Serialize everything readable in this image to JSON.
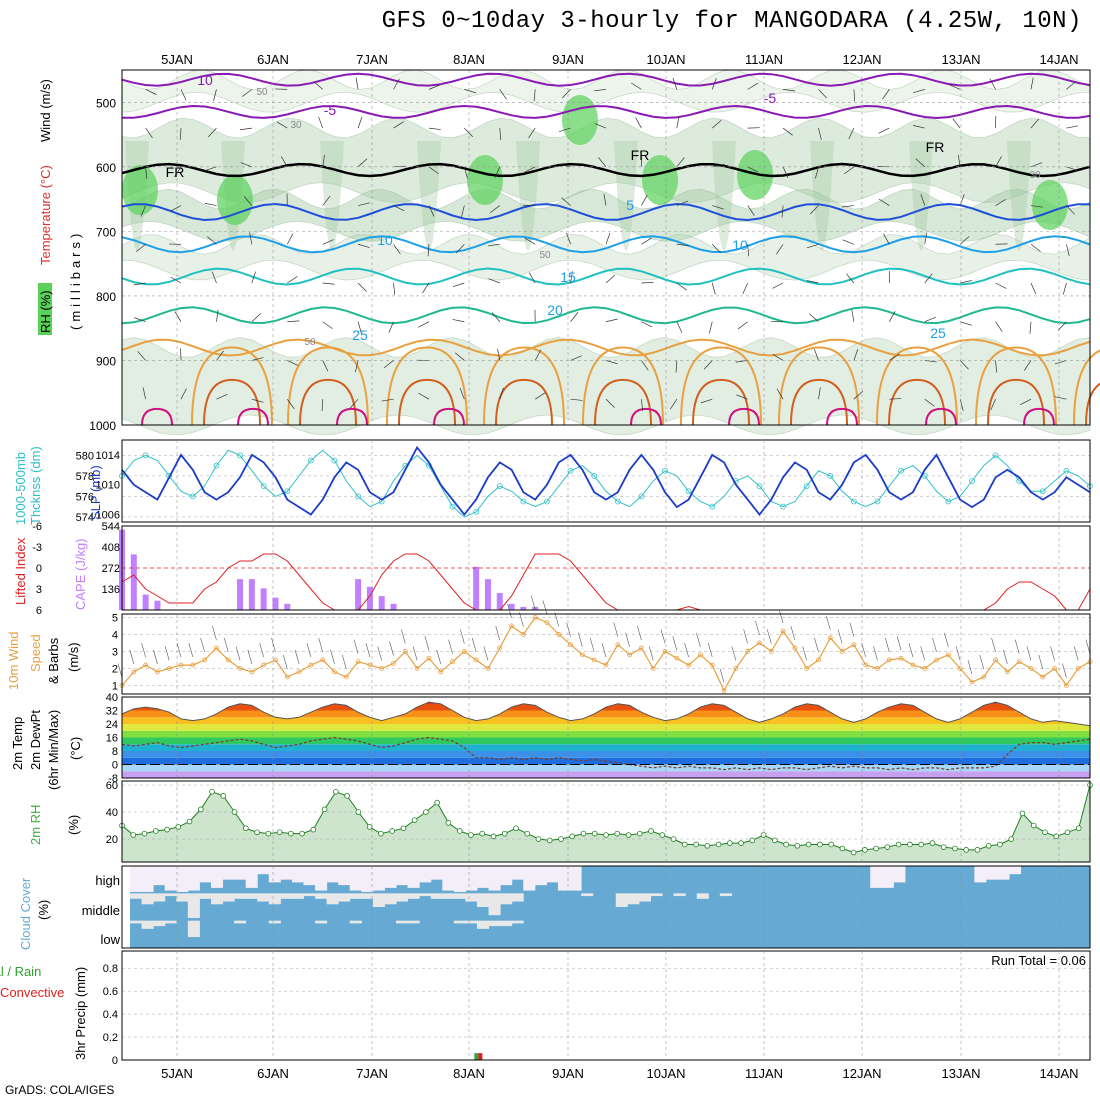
{
  "title": "GFS 0~10day 3-hourly for MANGODARA (4.25W, 10N)",
  "credit": "GrADS: COLA/IGES",
  "run_total": "Run Total = 0.06",
  "date_labels": [
    "5JAN",
    "6JAN",
    "7JAN",
    "8JAN",
    "9JAN",
    "10JAN",
    "11JAN",
    "12JAN",
    "13JAN",
    "14JAN"
  ],
  "panel_labels": {
    "upper": {
      "rh": "RH (%)",
      "temperature": "Temperature (°C)",
      "wind": "Wind (m/s)",
      "mb": "(millibars)"
    },
    "thickness": {
      "a": "1000-500mb",
      "b": "Thcknss (dm)",
      "c": "SLP (mb)"
    },
    "cape": {
      "a": "Lifted Index",
      "b": "CAPE (J/kg)"
    },
    "wind10": {
      "a": "10m Wind",
      "b": "Speed",
      "c": "& Barbs",
      "d": "(m/s)"
    },
    "temp2m": {
      "a": "2m Temp",
      "b": "2m DewPt",
      "c": "(6hr Min/Max)",
      "d": "(°C)"
    },
    "rh2m": {
      "a": "2m RH",
      "b": "(%)"
    },
    "cloud": {
      "a": "Cloud Cover",
      "b": "(%)",
      "high": "high",
      "middle": "middle",
      "low": "low"
    },
    "precip": {
      "a": "tal / Rain",
      "b": "Convective",
      "c": "3hr Precip (mm)"
    }
  },
  "contour_labels": [
    "10",
    "-5",
    "50",
    "30",
    "FR",
    "FR",
    "FR",
    "-5",
    "5",
    "10",
    "10",
    "15",
    "20",
    "25",
    "25",
    "50",
    "50",
    "30"
  ],
  "colors": {
    "temp_cold": "#8a19b4",
    "temp_zero": "#000000",
    "temp_mid": "#1e4fd8",
    "rh_green": "#5ad25a",
    "slp": "#1c3cc8",
    "thickness": "#30c0c8",
    "cape": "#c080ff",
    "li": "#e02020",
    "wind": "#e8a040",
    "cloud": "#66aad4",
    "rh2m": "#40b040"
  },
  "chart_data": [
    {
      "type": "area",
      "title": "",
      "ylabel": "Wind (m/s)",
      "y_ticks": [
        500,
        600,
        700,
        800,
        900,
        1000
      ],
      "ylim": [
        1000,
        450
      ],
      "isotherms": [
        {
          "label": "10",
          "level_mb": 465
        },
        {
          "label": "-5",
          "level_mb": 515
        },
        {
          "label": "FR",
          "level_mb": 605
        },
        {
          "label": "5",
          "level_mb": 670
        },
        {
          "label": "10",
          "level_mb": 720
        },
        {
          "label": "15",
          "level_mb": 770
        },
        {
          "label": "20",
          "level_mb": 830
        },
        {
          "label": "25",
          "level_mb": 880
        }
      ]
    },
    {
      "type": "line",
      "y_ticks_left": [
        574,
        576,
        578,
        580
      ],
      "y_ticks_right": [
        1006,
        1010,
        1014
      ],
      "ylim_left": [
        573.5,
        581.5
      ],
      "ylim_right": [
        1005,
        1016
      ],
      "series": [
        {
          "name": "Thcknss (dm)",
          "axis": "left",
          "values": [
            578,
            579.5,
            580,
            579.5,
            578,
            576.5,
            576,
            577,
            579,
            580.5,
            580,
            578.5,
            577,
            576,
            576.5,
            578,
            579.5,
            580.5,
            579.5,
            577.5,
            576,
            575,
            575.5,
            577.5,
            579,
            580,
            579,
            577,
            575,
            574,
            574.5,
            576,
            577,
            576.5,
            575.5,
            575,
            575.5,
            577,
            578.5,
            579,
            578,
            576.5,
            575.5,
            575,
            576,
            577.5,
            578.5,
            578,
            576.5,
            575.5,
            575,
            576,
            577.5,
            578,
            577,
            575.5,
            575,
            575.5,
            577,
            578.5,
            578,
            576.5,
            575.5,
            575,
            575.5,
            577,
            578.5,
            579,
            578,
            576.5,
            575.5,
            576,
            577.5,
            579,
            580,
            579,
            577.5,
            576.5,
            576.5,
            577.5,
            578.5,
            578,
            577
          ]
        },
        {
          "name": "SLP (mb)",
          "axis": "right",
          "values": [
            1012,
            1010,
            1009,
            1008,
            1011,
            1014,
            1012,
            1009,
            1008,
            1009,
            1011,
            1014,
            1013,
            1011,
            1008,
            1007,
            1006,
            1008,
            1011,
            1013,
            1012,
            1009,
            1008,
            1009,
            1012,
            1015,
            1013,
            1010,
            1008,
            1006,
            1008,
            1011,
            1013,
            1012,
            1009,
            1008,
            1010,
            1013,
            1014,
            1012,
            1009,
            1008,
            1009,
            1012,
            1014,
            1012,
            1009,
            1007,
            1008,
            1011,
            1014,
            1013,
            1010,
            1008,
            1006,
            1008,
            1011,
            1013,
            1012,
            1009,
            1008,
            1010,
            1013,
            1014,
            1012,
            1009,
            1008,
            1009,
            1012,
            1014,
            1011,
            1008,
            1007,
            1008,
            1011,
            1012,
            1011,
            1009,
            1008,
            1009,
            1011,
            1010,
            1009
          ]
        }
      ]
    },
    {
      "type": "bar",
      "y_ticks_left": [
        "6",
        "3",
        "0",
        "-3",
        "-6"
      ],
      "y_ticks_right": [
        136,
        272,
        408,
        544
      ],
      "cape_values": [
        520,
        360,
        100,
        60,
        0,
        0,
        0,
        0,
        0,
        0,
        200,
        200,
        140,
        80,
        40,
        0,
        0,
        0,
        0,
        0,
        200,
        150,
        90,
        40,
        0,
        0,
        0,
        0,
        0,
        0,
        280,
        200,
        110,
        40,
        20,
        20,
        0,
        0,
        0,
        0,
        0,
        0,
        0,
        0,
        0,
        0,
        0,
        0,
        0,
        0,
        0,
        0,
        0,
        0,
        0,
        0,
        0,
        0,
        0,
        0,
        0,
        0,
        0,
        0,
        0,
        0,
        0,
        0,
        0,
        0,
        0,
        0,
        0,
        0,
        0,
        0,
        0,
        0,
        0,
        0,
        0,
        0,
        0
      ],
      "li_values": [
        2,
        1,
        3,
        4,
        5,
        5,
        5,
        3,
        2,
        0,
        -1,
        -1,
        -2,
        -2,
        -1,
        1,
        3,
        5,
        6,
        6,
        6,
        4,
        1,
        -1,
        -2,
        -2,
        -1,
        1,
        3,
        5,
        6,
        6,
        6,
        4,
        1,
        -2,
        -2,
        -2,
        -1,
        1,
        3,
        5,
        6,
        6,
        6,
        6,
        6,
        6,
        5.5,
        6,
        6,
        6,
        6,
        6,
        6,
        6,
        6,
        6,
        6,
        6,
        6,
        6,
        6,
        6,
        6,
        6,
        6,
        6,
        6,
        6,
        6,
        6,
        6,
        6,
        5,
        3,
        2,
        2,
        3,
        4,
        6,
        6,
        3
      ]
    },
    {
      "type": "line",
      "ylabel": "(m/s)",
      "y_ticks": [
        1,
        2,
        3,
        4,
        5
      ],
      "ylim": [
        0.5,
        5.2
      ],
      "values": [
        1,
        1.8,
        2.2,
        1.8,
        2,
        2.2,
        2.2,
        2.5,
        3.2,
        2.5,
        2,
        1.8,
        2.2,
        2.5,
        1.5,
        1.8,
        2.2,
        2.5,
        1.8,
        1.5,
        2.4,
        2.2,
        2,
        2.3,
        3,
        2,
        2.6,
        1.8,
        2.4,
        3,
        2.5,
        2,
        3.2,
        4.5,
        4,
        5,
        4.7,
        4,
        3.4,
        2.8,
        2.5,
        2.2,
        3.4,
        2.8,
        3.2,
        2,
        3,
        2.6,
        2.2,
        2.8,
        2.2,
        0.7,
        2,
        3,
        3.5,
        3,
        4.2,
        3.2,
        2,
        2.5,
        3.8,
        3,
        3.4,
        2.2,
        2,
        2.5,
        2.6,
        2.2,
        2,
        2.5,
        2.8,
        2,
        1.2,
        1.5,
        2.5,
        1.8,
        2.4,
        2,
        1.5,
        2,
        1,
        2,
        2.4
      ]
    },
    {
      "type": "area",
      "ylabel": "(°C)",
      "y_ticks": [
        40,
        32,
        24,
        16,
        8,
        0,
        -8
      ],
      "ylim": [
        -8,
        40
      ],
      "temperature": [
        30,
        33,
        34,
        33,
        31,
        27,
        26,
        27,
        30,
        34,
        36,
        35,
        31,
        28,
        27,
        28,
        31,
        34,
        36,
        35,
        31,
        28,
        26,
        28,
        30,
        34,
        37,
        36,
        32,
        28,
        26,
        27,
        30,
        34,
        36,
        35,
        31,
        28,
        26,
        27,
        30,
        34,
        36,
        35,
        31,
        28,
        26,
        27,
        30,
        34,
        36,
        35,
        31,
        27,
        25,
        27,
        30,
        34,
        36,
        35,
        31,
        27,
        25,
        27,
        31,
        34,
        36,
        35,
        31,
        27,
        25,
        27,
        31,
        35,
        37,
        35,
        31,
        27,
        25,
        26,
        25,
        24,
        23
      ],
      "dewpoint": [
        12,
        11,
        12,
        13,
        11,
        10,
        11,
        12,
        13,
        14,
        15,
        14,
        12,
        10,
        11,
        12,
        14,
        15,
        16,
        15,
        14,
        12,
        10,
        11,
        13,
        15,
        16,
        15,
        14,
        10,
        4,
        4,
        3,
        4,
        3,
        4,
        3,
        4,
        3,
        2,
        3,
        2,
        1,
        0,
        -1,
        -2,
        -1,
        -2,
        -1,
        -2,
        -2,
        -3,
        -2,
        -3,
        -2,
        -3,
        -2,
        -2,
        -3,
        -2,
        -1,
        -2,
        -1,
        -2,
        -2,
        -3,
        -2,
        -3,
        -2,
        -2,
        -3,
        -2,
        -2,
        -2,
        -1,
        6,
        12,
        13,
        13,
        12,
        13,
        14,
        15
      ]
    },
    {
      "type": "area",
      "ylabel": "(%)",
      "y_ticks": [
        20,
        40,
        60
      ],
      "ylim": [
        3,
        63
      ],
      "values": [
        30,
        23,
        24,
        26,
        27,
        29,
        33,
        42,
        55,
        52,
        40,
        28,
        25,
        24,
        25,
        24,
        24,
        27,
        42,
        55,
        52,
        40,
        29,
        24,
        26,
        28,
        34,
        40,
        47,
        32,
        26,
        23,
        24,
        22,
        24,
        28,
        24,
        20,
        19,
        20,
        22,
        24,
        24,
        23,
        24,
        23,
        24,
        26,
        23,
        20,
        16,
        16,
        15,
        16,
        17,
        17,
        19,
        23,
        19,
        16,
        15,
        16,
        16,
        16,
        13,
        10,
        12,
        13,
        14,
        16,
        16,
        16,
        17,
        14,
        13,
        12,
        12,
        15,
        16,
        20,
        39,
        30,
        25,
        22,
        25,
        28,
        60
      ]
    },
    {
      "type": "bar",
      "rows": [
        "high",
        "middle",
        "low"
      ],
      "high": [
        0.95,
        0.95,
        0.7,
        0.9,
        0.95,
        0.9,
        0.6,
        0.8,
        0.5,
        0.5,
        0.8,
        0.3,
        0.6,
        0.5,
        0.6,
        0.7,
        0.9,
        0.6,
        0.7,
        0.9,
        0.95,
        0.9,
        0.8,
        0.7,
        0.8,
        0.6,
        0.5,
        0.9,
        0.95,
        0.9,
        0.8,
        0.9,
        0.7,
        0.5,
        0.9,
        0.7,
        0.6,
        0.9,
        0.9,
        0,
        0,
        0,
        0,
        0,
        0,
        0,
        0,
        0,
        0,
        0,
        0,
        0,
        0,
        0,
        0,
        0,
        0,
        0,
        0,
        0,
        0,
        0,
        0,
        0,
        0.8,
        0.8,
        0.6,
        0,
        0,
        0,
        0,
        0,
        0,
        0.6,
        0.5,
        0.5,
        0.3,
        0,
        0,
        0,
        0,
        0,
        0
      ],
      "middle": [
        0.2,
        0.4,
        0.3,
        0.1,
        0.3,
        0.9,
        0.2,
        0.4,
        0.3,
        0.2,
        0.2,
        0.3,
        0.4,
        0.2,
        0.2,
        0.1,
        0.2,
        0.4,
        0.3,
        0.2,
        0.2,
        0.5,
        0.4,
        0.3,
        0.2,
        0.1,
        0.2,
        0.2,
        0.2,
        0.3,
        0.5,
        0.8,
        0.4,
        0.3,
        0,
        0,
        0,
        0,
        0,
        0.1,
        0,
        0,
        0.5,
        0.4,
        0.3,
        0.1,
        0,
        0.1,
        0,
        0.2,
        0,
        0.1,
        0,
        0,
        0,
        0,
        0,
        0,
        0,
        0,
        0,
        0,
        0,
        0,
        0,
        0,
        0,
        0,
        0,
        0,
        0,
        0,
        0,
        0,
        0,
        0,
        0,
        0,
        0,
        0,
        0,
        0,
        0
      ],
      "low": [
        0.1,
        0.3,
        0.2,
        0.1,
        0,
        0.6,
        0,
        0,
        0,
        0.1,
        0,
        0,
        0.1,
        0,
        0,
        0,
        0.1,
        0,
        0,
        0.1,
        0,
        0,
        0,
        0.1,
        0.1,
        0,
        0,
        0,
        0.1,
        0.1,
        0.3,
        0.2,
        0.2,
        0.1,
        0,
        0,
        0,
        0,
        0,
        0,
        0,
        0,
        0,
        0,
        0,
        0,
        0,
        0,
        0,
        0,
        0,
        0,
        0,
        0,
        0,
        0,
        0,
        0,
        0,
        0,
        0,
        0,
        0,
        0,
        0,
        0,
        0,
        0,
        0,
        0,
        0,
        0,
        0,
        0,
        0,
        0,
        0,
        0,
        0,
        0,
        0,
        0,
        0
      ]
    },
    {
      "type": "bar",
      "ylabel": "3hr Precip (mm)",
      "y_ticks": [
        0,
        0.2,
        0.4,
        0.6,
        0.8
      ],
      "ylim": [
        0,
        0.95
      ],
      "precip_index": 29,
      "rain": 0.06,
      "convective": 0.06
    }
  ]
}
